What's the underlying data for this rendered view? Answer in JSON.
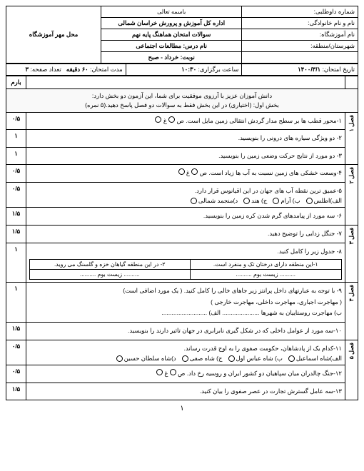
{
  "header": {
    "top_title": "باسمه تعالی",
    "r1c1_label": "شماره داوطلبی:",
    "r1c2_label": "اداره کل آموزش و پرورش خراسان شمالی",
    "r1c3_label": "محل مهر آموزشگاه",
    "r2c1_label": "نام و نام خانوادگی:",
    "r2c2_label": "سوالات امتحان هماهنگ پایه نهم",
    "r2c3_label": "تاریخ امتحان:",
    "r2c3_val": "۱۴۰۰/۳/۱",
    "r3c1_label": "نام آموزشگاه:",
    "r3c2_label": "نام درس: مطالعات اجتماعی",
    "r3c3_label": "ساعت برگزاری:",
    "r3c3_val": "۱۰:۳۰",
    "r4c1_label": "شهرستان/منطقه:",
    "r4c2_label": "نوبت: خرداد - صبح",
    "r4c3_label": "مدت امتحان:",
    "r4c3_val": "۶۰ دقیقه",
    "r5c3_label": "تعداد صفحه:",
    "r5c3_val": "۳"
  },
  "table_head": {
    "score": "بارم"
  },
  "intro": {
    "l1": "دانش آموزان عزیز با آرزوی موفقیت برای شما، این آزمون دو بخش دارد:",
    "l2": "بخش اول: (اختیاری) در این بخش فقط به سوالات دو فصل پاسخ دهید.(۵ نمره)"
  },
  "sections": [
    {
      "side": "فصل ۱",
      "items": [
        {
          "score": "۰/۵",
          "text": "۱-محور قطب ها بر سطح مدار گردش انتقالی زمین مایل است.  ص",
          "opts": [
            "غ"
          ],
          "tf": true
        },
        {
          "score": "۱",
          "text": "۲- دو ویژگی سیاره های درونی را بنویسید."
        },
        {
          "score": "۱",
          "text": "۳- دو مورد از نتایج حرکت وضعی زمین را بنویسید."
        }
      ]
    },
    {
      "side": "فصل ۲",
      "items": [
        {
          "score": "۰/۵",
          "text": "۴-وسعت خشکی های زمین نسبت به آب ها زیاد است.  ص",
          "opts": [
            "غ"
          ],
          "tf": true
        },
        {
          "score": "۰/۵",
          "text": "۵-عمیق ترین نقطه آب های جهان در این اقیانوس قرار دارد.",
          "opts": [
            "الف)اطلس",
            "ب) آرام",
            "ج) هند",
            "د)منجمد شمالی"
          ]
        },
        {
          "score": "۱/۵",
          "text": "۶- سه مورد از پیامدهای گرم شدن کره زمین را بنویسید."
        }
      ]
    },
    {
      "side": "فصل ۳",
      "items": [
        {
          "score": "۱/۵",
          "text": "۷- جنگل زدایی را توضیح دهید."
        },
        {
          "score": "۱",
          "text": "۸- جدول زیر را کامل کنید.",
          "table": {
            "h1": "۱-این منطقه دارای درختان تک و منفرد است.",
            "h2": "۲- در این منطقه گیاهان خزه و گلسنگ می روید.",
            "c1": ".......... زیست بوم ..........",
            "c2": ".......... زیست بوم .........."
          }
        }
      ]
    },
    {
      "side": "فصل ۴",
      "items": [
        {
          "score": "۱",
          "text": "۹- با توجه به عبارتهای داخل پرانتز زیر جاهای خالی را کامل کنید. ( یک مورد اضافی است)",
          "sub": "( مهاجرت اجباری، مهاجرت داخلی، مهاجرت خارجی )",
          "fill": "ب) مهاجرت روستاییان به شهرها ...................... الف) ..........................."
        },
        {
          "score": "۱/۵",
          "text": "۱۰-سه مورد از عوامل داخلی که در شکل گیری نابرابری در جهان تاثیر دارند را بنویسید."
        }
      ]
    },
    {
      "side": "فصل ۵",
      "items": [
        {
          "score": "۰/۵",
          "text": "۱۱-کدام یک از پادشاهان، حکومت صفوی را به اوج قدرت رساند.",
          "opts": [
            "الف)شاه اسماعیل",
            "ب) شاه عباس اول",
            "ج) شاه صفی",
            "د)شاه سلطان حسین"
          ]
        },
        {
          "score": "۰/۵",
          "text": "۱۲-جنگ چالدران میان سپاهیان دو کشور ایران و روسیه رخ داد.  ص",
          "opts": [
            "غ"
          ],
          "tf": true
        },
        {
          "score": "۱/۵",
          "text": "۱۳-سه عامل گسترش تجارت در عصر صفوی را بیان کنید."
        }
      ]
    }
  ],
  "page_number": "۱"
}
